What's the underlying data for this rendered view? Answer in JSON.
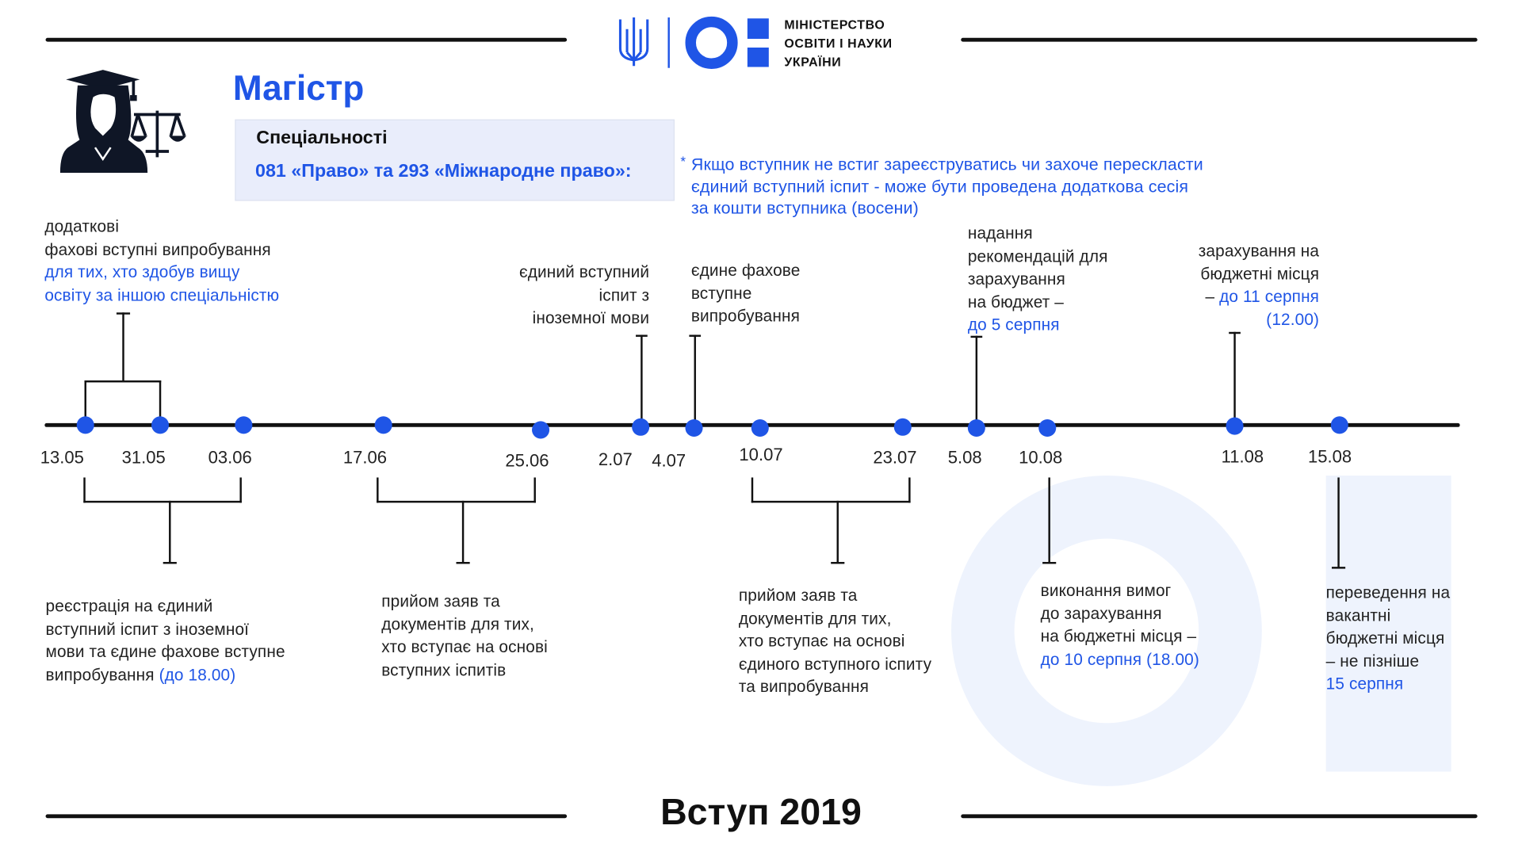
{
  "colors": {
    "accent": "#1f55e6",
    "line": "#111111",
    "panel": "#e9edfb",
    "decor": "#eef3fd"
  },
  "logo": {
    "lines": [
      "МІНІСТЕРСТВО",
      "ОСВІТИ І НАУКИ",
      "УКРАЇНИ"
    ],
    "icon": "trident-icon"
  },
  "title": "Магістр",
  "specialties": {
    "heading": "Спеціальності",
    "value": "081 «Право» та 293 «Міжнародне право»:"
  },
  "note": {
    "marker": "*",
    "lines": [
      "Якщо вступник не встиг зареєструватись чи захоче перескласти",
      "єдиний вступний іспит - може бути проведена додаткова сесія",
      "за кошти вступника (восени)"
    ]
  },
  "timeline": {
    "dates": [
      "13.05",
      "31.05",
      "03.06",
      "17.06",
      "25.06",
      "2.07",
      "4.07",
      "10.07",
      "23.07",
      "5.08",
      "10.08",
      "11.08",
      "15.08"
    ]
  },
  "top_events": [
    {
      "lines": [
        [
          {
            "t": "додаткові"
          }
        ],
        [
          {
            "t": "фахові вступні випробування"
          }
        ],
        [
          {
            "t": "для тих, хто здобув вищу",
            "a": true
          }
        ],
        [
          {
            "t": "освіту за іншою спеціальністю",
            "a": true
          }
        ]
      ]
    },
    {
      "lines": [
        [
          {
            "t": "єдиний вступний"
          }
        ],
        [
          {
            "t": "іспит з"
          }
        ],
        [
          {
            "t": "іноземної мови"
          }
        ]
      ]
    },
    {
      "lines": [
        [
          {
            "t": "єдине фахове"
          }
        ],
        [
          {
            "t": "вступне"
          }
        ],
        [
          {
            "t": "випробування"
          }
        ]
      ]
    },
    {
      "lines": [
        [
          {
            "t": "надання"
          }
        ],
        [
          {
            "t": "рекомендацій для"
          }
        ],
        [
          {
            "t": "зарахування"
          }
        ],
        [
          {
            "t": "на бюджет –"
          }
        ],
        [
          {
            "t": "до 5 серпня",
            "a": true
          }
        ]
      ]
    },
    {
      "lines": [
        [
          {
            "t": "зарахування на"
          }
        ],
        [
          {
            "t": "бюджетні місця"
          }
        ],
        [
          {
            "t": "–  "
          },
          {
            "t": "до 11 серпня",
            "a": true
          }
        ],
        [
          {
            "t": "(12.00)",
            "a": true
          }
        ]
      ]
    }
  ],
  "bottom_events": [
    {
      "lines": [
        [
          {
            "t": "реєстрація на єдиний"
          }
        ],
        [
          {
            "t": "вступний іспит з іноземної"
          }
        ],
        [
          {
            "t": "мови та єдине фахове вступне"
          }
        ],
        [
          {
            "t": "випробування "
          },
          {
            "t": "(до 18.00)",
            "a": true
          }
        ]
      ]
    },
    {
      "lines": [
        [
          {
            "t": "прийом заяв та"
          }
        ],
        [
          {
            "t": "документів для тих,"
          }
        ],
        [
          {
            "t": "хто вступає на основі"
          }
        ],
        [
          {
            "t": "вступних іспитів"
          }
        ]
      ]
    },
    {
      "lines": [
        [
          {
            "t": "прийом заяв та"
          }
        ],
        [
          {
            "t": "документів для тих,"
          }
        ],
        [
          {
            "t": "хто вступає на основі"
          }
        ],
        [
          {
            "t": "єдиного вступного іспиту"
          }
        ],
        [
          {
            "t": "та випробування"
          }
        ]
      ]
    },
    {
      "lines": [
        [
          {
            "t": "виконання вимог"
          }
        ],
        [
          {
            "t": "до зарахування"
          }
        ],
        [
          {
            "t": "на бюджетні місця –"
          }
        ],
        [
          {
            "t": "до 10 серпня (18.00)",
            "a": true
          }
        ]
      ]
    },
    {
      "lines": [
        [
          {
            "t": "переведення на"
          }
        ],
        [
          {
            "t": "вакантні"
          }
        ],
        [
          {
            "t": "бюджетні місця"
          }
        ],
        [
          {
            "t": " – не пізніше"
          }
        ],
        [
          {
            "t": "15 серпня",
            "a": true
          }
        ]
      ]
    }
  ],
  "footer": "Вступ 2019"
}
